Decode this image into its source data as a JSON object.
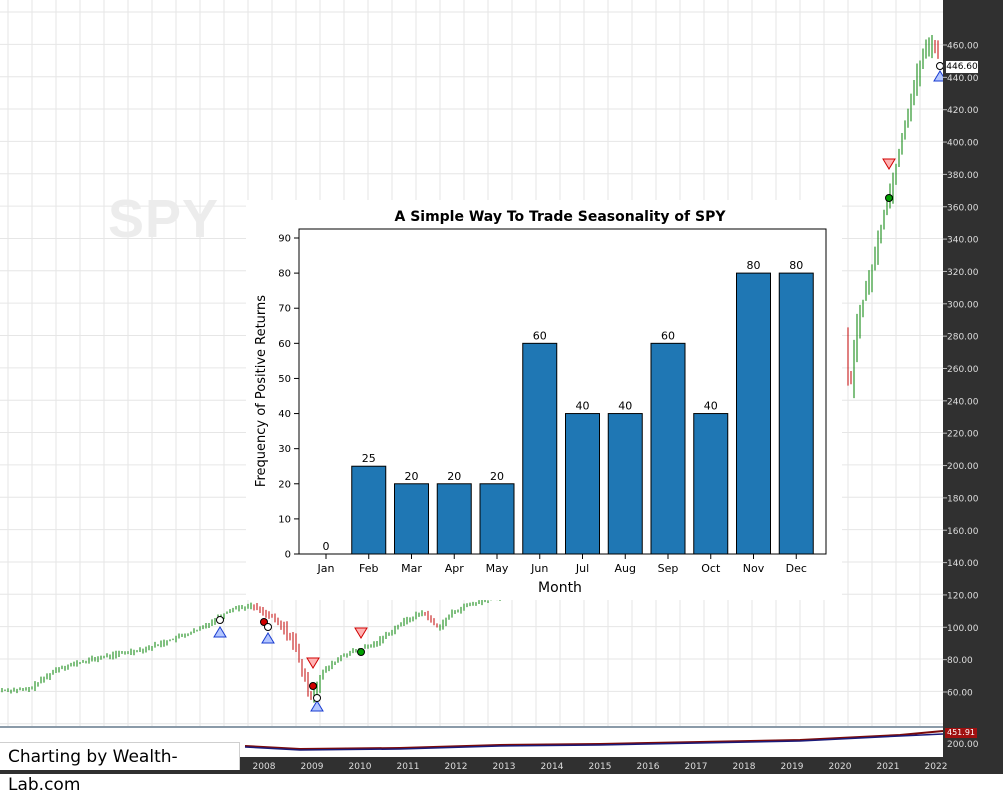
{
  "watermark": "SPY",
  "credit": "Charting by Wealth-Lab.com",
  "background_chart": {
    "last_price_label": "446.60",
    "lower_pane_label": "451.91",
    "lower_pane_tick": "200.00",
    "price_ticks": [
      "460.00",
      "440.00",
      "420.00",
      "400.00",
      "380.00",
      "360.00",
      "340.00",
      "320.00",
      "300.00",
      "280.00",
      "260.00",
      "240.00",
      "220.00",
      "200.00",
      "180.00",
      "160.00",
      "140.00",
      "120.00",
      "100.00",
      "80.00",
      "60.00"
    ],
    "year_ticks": [
      "2008",
      "2009",
      "2010",
      "2011",
      "2012",
      "2013",
      "2014",
      "2015",
      "2016",
      "2017",
      "2018",
      "2019",
      "2020",
      "2021",
      "2022"
    ],
    "colors": {
      "up": "#008000",
      "down": "#c00000",
      "grid": "#e6e6e6",
      "axis_panel": "#303030"
    }
  },
  "chart_data": {
    "type": "bar",
    "title": "A Simple Way To Trade Seasonality of SPY",
    "xlabel": "Month",
    "ylabel": "Frequency of Positive Returns",
    "categories": [
      "Jan",
      "Feb",
      "Mar",
      "Apr",
      "May",
      "Jun",
      "Jul",
      "Aug",
      "Sep",
      "Oct",
      "Nov",
      "Dec"
    ],
    "values": [
      0,
      25,
      20,
      20,
      20,
      60,
      40,
      40,
      60,
      40,
      80,
      80
    ],
    "data_labels": [
      "0",
      "25",
      "20",
      "20",
      "20",
      "60",
      "40",
      "40",
      "60",
      "40",
      "80",
      "80"
    ],
    "yticks": [
      0,
      10,
      20,
      30,
      40,
      50,
      60,
      70,
      80,
      90
    ],
    "ylim": [
      0,
      90
    ],
    "grid": false,
    "legend": "none",
    "bar_color": "#1f77b4"
  }
}
